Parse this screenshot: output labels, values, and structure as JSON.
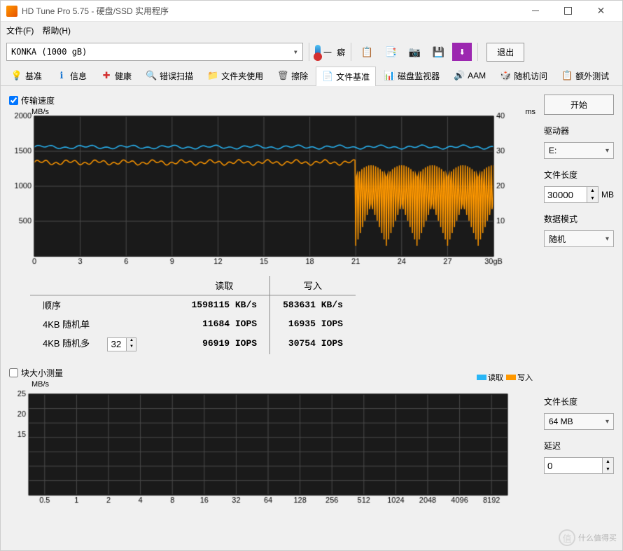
{
  "window": {
    "title": "HD Tune Pro 5.75 - 硬盘/SSD 实用程序"
  },
  "menu": {
    "file": "文件(F)",
    "help": "帮助(H)"
  },
  "drive": {
    "selected": "KONKA (1000 gB)"
  },
  "temp": {
    "label": "一 癖"
  },
  "exit": {
    "label": "退出"
  },
  "tabs": [
    {
      "icon": "💡",
      "color": "#fbc02d",
      "label": "基准"
    },
    {
      "icon": "ℹ",
      "color": "#1976d2",
      "label": "信息"
    },
    {
      "icon": "✚",
      "color": "#d32f2f",
      "label": "健康"
    },
    {
      "icon": "🔍",
      "color": "#388e3c",
      "label": "错误扫描"
    },
    {
      "icon": "📁",
      "color": "#f9a825",
      "label": "文件夹使用"
    },
    {
      "icon": "🗑",
      "color": "#555",
      "label": "擦除"
    },
    {
      "icon": "📄",
      "color": "#7b1fa2",
      "label": "文件基准"
    },
    {
      "icon": "📊",
      "color": "#388e3c",
      "label": "磁盘监视器"
    },
    {
      "icon": "🔊",
      "color": "#fbc02d",
      "label": "AAM"
    },
    {
      "icon": "🎲",
      "color": "#f57c00",
      "label": "随机访问"
    },
    {
      "icon": "📋",
      "color": "#d32f2f",
      "label": "额外测试"
    }
  ],
  "chart1": {
    "checkbox_label": "传输速度",
    "checked": true,
    "y_left_label": "MB/s",
    "y_right_label": "ms",
    "y_left": {
      "min": 0,
      "max": 2000,
      "step": 500
    },
    "y_right": {
      "min": 0,
      "max": 40,
      "step": 10
    },
    "x": {
      "min": 0,
      "max": 30,
      "step": 3,
      "unit": "gB"
    },
    "bg": "#1a1a1a",
    "grid": "#4a4a4a",
    "read_color": "#29b6f6",
    "write_color": "#ff9800",
    "read_baseline": 1560,
    "write_baseline": 1340,
    "write_drop_start": 21
  },
  "results": {
    "col_read": "读取",
    "col_write": "写入",
    "rows": [
      {
        "label": "顺序",
        "read": "1598115 KB/s",
        "write": "583631 KB/s"
      },
      {
        "label": "4KB 随机单",
        "read": "11684 IOPS",
        "write": "16935 IOPS"
      },
      {
        "label": "4KB 随机多",
        "read": "96919 IOPS",
        "write": "30754 IOPS"
      }
    ],
    "multi_threads": "32"
  },
  "chart2": {
    "checkbox_label": "块大小测量",
    "checked": false,
    "y_left_label": "MB/s",
    "y_left": {
      "ticks": [
        25,
        20,
        15
      ]
    },
    "x_ticks": [
      0.5,
      1,
      2,
      4,
      8,
      16,
      32,
      64,
      128,
      256,
      512,
      1024,
      2048,
      4096,
      8192
    ],
    "bg": "#1a1a1a",
    "grid": "#4a4a4a",
    "legend_read": "读取",
    "legend_write": "写入",
    "read_color": "#29b6f6",
    "write_color": "#ff9800"
  },
  "side": {
    "start": "开始",
    "drive_lbl": "驱动器",
    "drive_val": "E:",
    "filelen_lbl": "文件长度",
    "filelen_val": "30000",
    "filelen_unit": "MB",
    "pattern_lbl": "数据模式",
    "pattern_val": "随机",
    "filelen2_lbl": "文件长度",
    "filelen2_val": "64 MB",
    "delay_lbl": "延迟",
    "delay_val": "0"
  },
  "watermark": "什么值得买"
}
